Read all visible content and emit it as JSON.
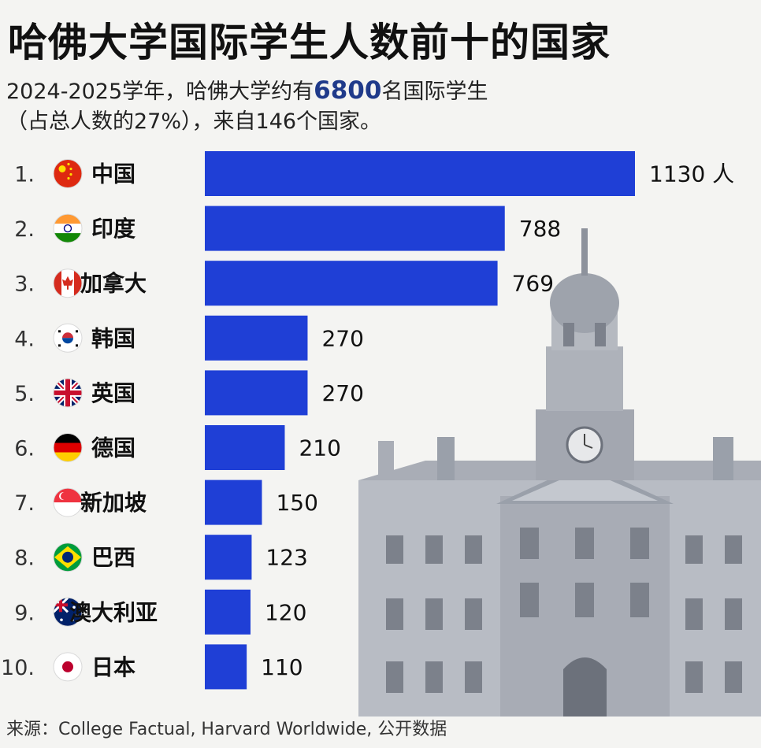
{
  "header": {
    "title": "哈佛大学国际学生人数前十的国家",
    "subtitle_pre": "2024-2025学年，哈佛大学约有",
    "subtitle_highlight": "6800",
    "subtitle_post": "名国际学生",
    "subtitle_line2": "（占总人数的27%），来自146个国家。"
  },
  "source": "来源：College Factual, Harvard Worldwide, 公开数据",
  "colors": {
    "bar": "#1f3fd6",
    "highlight": "#1f3a8a",
    "text": "#111111"
  },
  "chart_data": {
    "type": "bar",
    "orientation": "horizontal",
    "categories": [
      "中国",
      "印度",
      "加拿大",
      "韩国",
      "英国",
      "德国",
      "新加坡",
      "巴西",
      "澳大利亚",
      "日本"
    ],
    "ranks": [
      "1.",
      "2.",
      "3.",
      "4.",
      "5.",
      "6.",
      "7.",
      "8.",
      "9.",
      "10."
    ],
    "values": [
      1130,
      788,
      769,
      270,
      270,
      210,
      150,
      123,
      120,
      110
    ],
    "value_labels": [
      "1130 人",
      "788",
      "769",
      "270",
      "270",
      "210",
      "150",
      "123",
      "120",
      "110"
    ],
    "flags": [
      "china-flag",
      "india-flag",
      "canada-flag",
      "south-korea-flag",
      "uk-flag",
      "germany-flag",
      "singapore-flag",
      "brazil-flag",
      "australia-flag",
      "japan-flag"
    ],
    "xlim": [
      0,
      1130
    ],
    "grid": false,
    "legend": false
  }
}
